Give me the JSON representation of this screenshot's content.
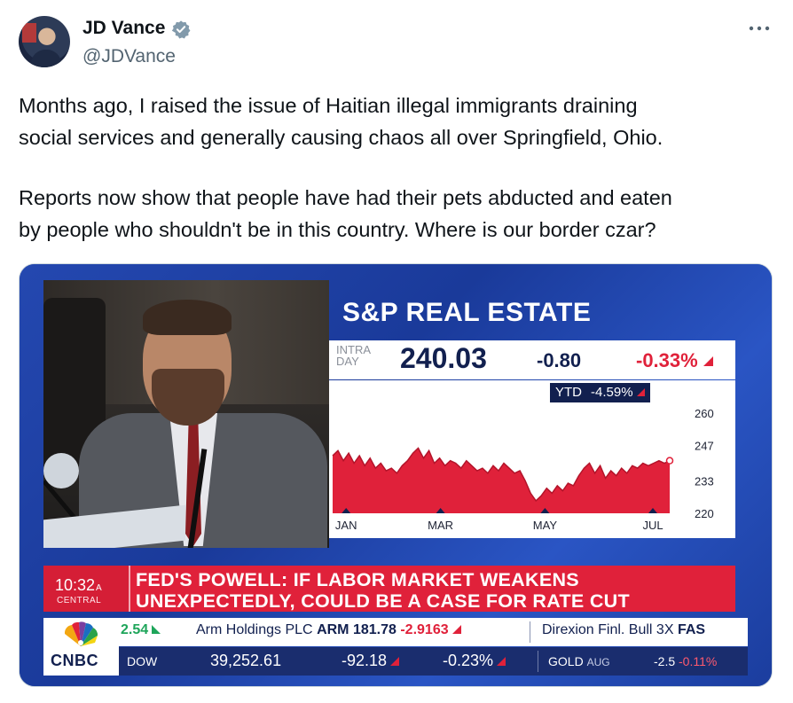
{
  "author": {
    "name": "JD Vance",
    "handle": "@JDVance"
  },
  "tweet": {
    "line1": "Months ago, I raised the issue of Haitian illegal immigrants draining",
    "line2": "social services and generally causing chaos all over Springfield, Ohio.",
    "line3": "Reports now show that people have had their pets abducted and eaten",
    "line4": "by people who shouldn't be in this country. Where is our border czar?"
  },
  "icons": {
    "verified": "verified-badge-icon",
    "more": "more-options-icon",
    "network_logo": "peacock-icon"
  },
  "broadcast": {
    "index_title": "S&P REAL ESTATE",
    "intraday_label": "INTRA DAY",
    "price": "240.03",
    "change": "-0.80",
    "change_pct": "-0.33%",
    "ytd_label": "YTD",
    "ytd_value": "-4.59%",
    "time": "10:32",
    "time_suffix": "A",
    "time_zone": "CENTRAL",
    "headline_line1": "FED'S POWELL: IF LABOR MARKET WEAKENS",
    "headline_line2": "UNEXPECTEDLY, COULD BE A CASE FOR RATE CUT",
    "network": "CNBC",
    "ticker_row1": {
      "lead_value": "2.54",
      "stock_name": "Arm Holdings PLC",
      "stock_symbol": "ARM",
      "stock_price": "181.78",
      "stock_change": "-2.9163",
      "next_name": "Direxion Finl. Bull 3X",
      "next_symbol": "FAS"
    },
    "ticker_row2": {
      "index": "DOW",
      "index_value": "39,252.61",
      "index_change": "-92.18",
      "index_pct": "-0.23%",
      "commodity": "GOLD",
      "commodity_month": "AUG",
      "commodity_change": "-2.5",
      "commodity_pct": "-0.11%"
    }
  },
  "colors": {
    "accent_red": "#e0213a",
    "navy": "#12204f",
    "cnbc_blue": "#1c3f9c",
    "twitter_gray": "#536471"
  },
  "chart_data": {
    "type": "area",
    "title": "S&P REAL ESTATE",
    "xlabel": "",
    "ylabel": "",
    "x_ticks": [
      "JAN",
      "MAR",
      "MAY",
      "JUL"
    ],
    "y_ticks": [
      260,
      247,
      233,
      220
    ],
    "ylim": [
      220,
      266
    ],
    "grid": false,
    "series": [
      {
        "values": [
          243,
          245,
          241,
          244,
          240,
          243,
          239,
          242,
          238,
          240,
          237,
          238,
          236,
          239,
          241,
          244,
          246,
          242,
          245,
          240,
          242,
          239,
          241,
          240,
          238,
          241,
          239,
          237,
          238,
          236,
          239,
          237,
          240,
          238,
          236,
          237,
          233,
          228,
          225,
          227,
          230,
          228,
          231,
          229,
          232,
          231,
          235,
          238,
          240,
          236,
          239,
          234,
          237,
          235,
          238,
          236,
          239,
          238,
          240,
          239,
          240,
          241,
          240,
          241
        ]
      }
    ]
  }
}
